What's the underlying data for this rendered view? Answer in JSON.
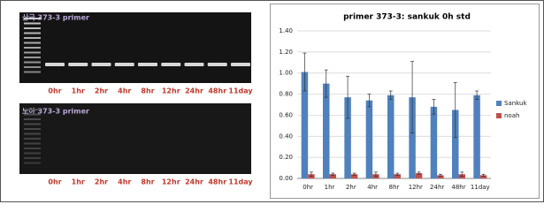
{
  "gels": [
    {
      "title": "산국 373-3 primer",
      "lanes": [
        "0hr",
        "1hr",
        "2hr",
        "4hr",
        "8hr",
        "12hr",
        "24hr",
        "48hr",
        "11day"
      ]
    },
    {
      "title": "노아 373-3 primer",
      "lanes": [
        "0hr",
        "1hr",
        "2hr",
        "4hr",
        "8hr",
        "12hr",
        "24hr",
        "48hr",
        "11day"
      ]
    }
  ],
  "chart_data": {
    "type": "bar",
    "title": "primer 373-3: sankuk 0h std",
    "categories": [
      "0hr",
      "1hr",
      "2hr",
      "4hr",
      "8hr",
      "12hr",
      "24hr",
      "48hr",
      "11day"
    ],
    "series": [
      {
        "name": "Sankuk",
        "color": "#4f81bd",
        "values": [
          1.01,
          0.9,
          0.77,
          0.74,
          0.79,
          0.77,
          0.68,
          0.65,
          0.79
        ],
        "errors": [
          0.18,
          0.13,
          0.2,
          0.06,
          0.04,
          0.34,
          0.07,
          0.26,
          0.04
        ]
      },
      {
        "name": "noah",
        "color": "#c0504d",
        "values": [
          0.04,
          0.04,
          0.04,
          0.04,
          0.04,
          0.05,
          0.03,
          0.04,
          0.03
        ],
        "errors": [
          0.02,
          0.01,
          0.01,
          0.02,
          0.01,
          0.01,
          0.01,
          0.02,
          0.01
        ]
      }
    ],
    "ylim": [
      0,
      1.4
    ],
    "yticks": [
      {
        "value": 0,
        "label": "0.00"
      },
      {
        "value": 0.2,
        "label": "0.20"
      },
      {
        "value": 0.4,
        "label": "0.40"
      },
      {
        "value": 0.6,
        "label": "0.60"
      },
      {
        "value": 0.8,
        "label": "0.80"
      },
      {
        "value": 1.0,
        "label": "1.00"
      },
      {
        "value": 1.2,
        "label": "1.20"
      },
      {
        "value": 1.4,
        "label": "1.40"
      }
    ],
    "grid": true,
    "legend": "right"
  }
}
